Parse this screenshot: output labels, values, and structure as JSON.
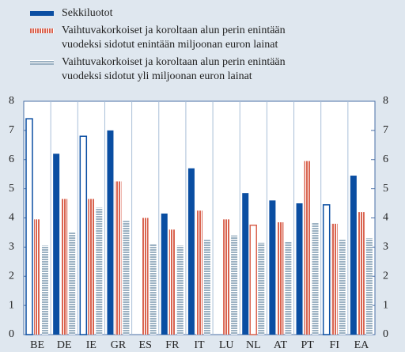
{
  "chart_data": {
    "type": "bar",
    "categories": [
      "BE",
      "DE",
      "IE",
      "GR",
      "ES",
      "FR",
      "IT",
      "LU",
      "NL",
      "AT",
      "PT",
      "FI",
      "EA"
    ],
    "series": [
      {
        "name": "Sekkiluotot",
        "color": "#0a4ea2",
        "values": [
          7.4,
          6.2,
          6.8,
          7.0,
          null,
          4.15,
          5.7,
          null,
          4.85,
          4.6,
          4.5,
          4.45,
          5.45
        ],
        "hollow": [
          true,
          false,
          true,
          false,
          false,
          false,
          false,
          false,
          false,
          false,
          false,
          true,
          false
        ]
      },
      {
        "name": "Vaihtuvakorkoiset ja koroltaan alun perin enintään\nvuodeksi sidotut enintään miljoonan euron lainat",
        "color": "#d9634f",
        "values": [
          3.95,
          4.65,
          4.65,
          5.25,
          4.0,
          3.6,
          4.25,
          3.95,
          3.75,
          3.85,
          5.95,
          3.8,
          4.2
        ],
        "hollow": [
          false,
          false,
          false,
          false,
          false,
          false,
          false,
          false,
          true,
          false,
          false,
          false,
          false
        ]
      },
      {
        "name": "Vaihtuvakorkoiset ja koroltaan alun perin enintään\nvuodeksi sidotut yli miljoonan euron lainat",
        "color": "#9bb1c2",
        "values": [
          3.05,
          3.5,
          4.35,
          3.9,
          3.1,
          3.05,
          3.25,
          3.4,
          3.15,
          3.2,
          3.85,
          3.25,
          3.3
        ],
        "hollow": [
          false,
          false,
          false,
          false,
          false,
          false,
          false,
          false,
          false,
          false,
          false,
          false,
          false
        ]
      }
    ],
    "ylim": [
      0,
      8
    ],
    "yticks": [
      0,
      1,
      2,
      3,
      4,
      5,
      6,
      7,
      8
    ],
    "y2lim": [
      0,
      8
    ],
    "y2ticks": [
      0,
      1,
      2,
      3,
      4,
      5,
      6,
      7,
      8
    ]
  }
}
